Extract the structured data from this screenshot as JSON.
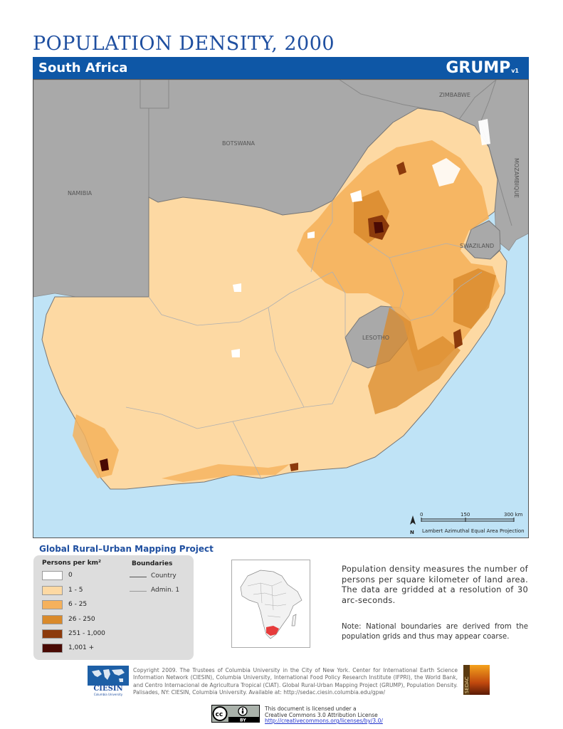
{
  "header": {
    "title": "POPULATION DENSITY, 2000",
    "subtitle": "South Africa",
    "logo": "GRUMP",
    "logo_version": "v1"
  },
  "map": {
    "labels": {
      "namibia": "NAMIBIA",
      "botswana": "BOTSWANA",
      "zimbabwe": "ZIMBABWE",
      "mozambique": "MOZAMBIQUE",
      "swaziland": "SWAZILAND",
      "lesotho": "LESOTHO"
    },
    "scale": {
      "tick0": "0",
      "tick1": "150",
      "tick2": "300 km",
      "projection": "Lambert Azimuthal Equal Area Projection",
      "north": "N"
    },
    "colors": {
      "ocean": "#bfe3f6",
      "neighbors": "#a9a9a9",
      "class_0": "#ffffff",
      "class_1_5": "#fdd9a3",
      "class_6_25": "#f5b15c",
      "class_26_250": "#d98a2b",
      "class_251_1000": "#8c3a0c",
      "class_1001": "#4a0a04"
    }
  },
  "legend": {
    "project": "Global Rural–Urban Mapping Project",
    "heading": "Persons per km²",
    "classes": [
      {
        "label": "0",
        "color": "#ffffff"
      },
      {
        "label": "1 - 5",
        "color": "#fdd9a3"
      },
      {
        "label": "6 - 25",
        "color": "#f5b15c"
      },
      {
        "label": "26 - 250",
        "color": "#d98a2b"
      },
      {
        "label": "251 - 1,000",
        "color": "#8c3a0c"
      },
      {
        "label": "1,001 +",
        "color": "#4a0a04"
      }
    ],
    "boundaries_heading": "Boundaries",
    "boundaries": [
      {
        "label": "Country"
      },
      {
        "label": "Admin. 1"
      }
    ]
  },
  "description": "Population density measures the number of persons per square kilometer of land area. The data are gridded at a resolution of 30 arc-seconds.",
  "note": "Note: National boundaries are derived from the population grids and thus may appear coarse.",
  "footer": {
    "ciesin": "CIESIN",
    "ciesin_sub": "Columbia University",
    "copyright": "Copyright 2009. The Trustees of Columbia University in the City of New York. Center for International Earth Science Information Network (CIESIN), Columbia University, International Food Policy Research Institute (IFPRI), the World Bank, and Centro Internacional de Agricultura Tropical (CIAT). Global Rural-Urban Mapping Project (GRUMP), Population Density. Palisades, NY: CIESIN, Columbia University. Available at: http://sedac.ciesin.columbia.edu/gpw/",
    "sedac": "SEDAC",
    "cc_line1": "This document is licensed under a",
    "cc_line2": "Creative Commons 3.0 Attribution License",
    "cc_link": "http://creativecommons.org/licenses/by/3.0/",
    "cc_by": "BY"
  }
}
